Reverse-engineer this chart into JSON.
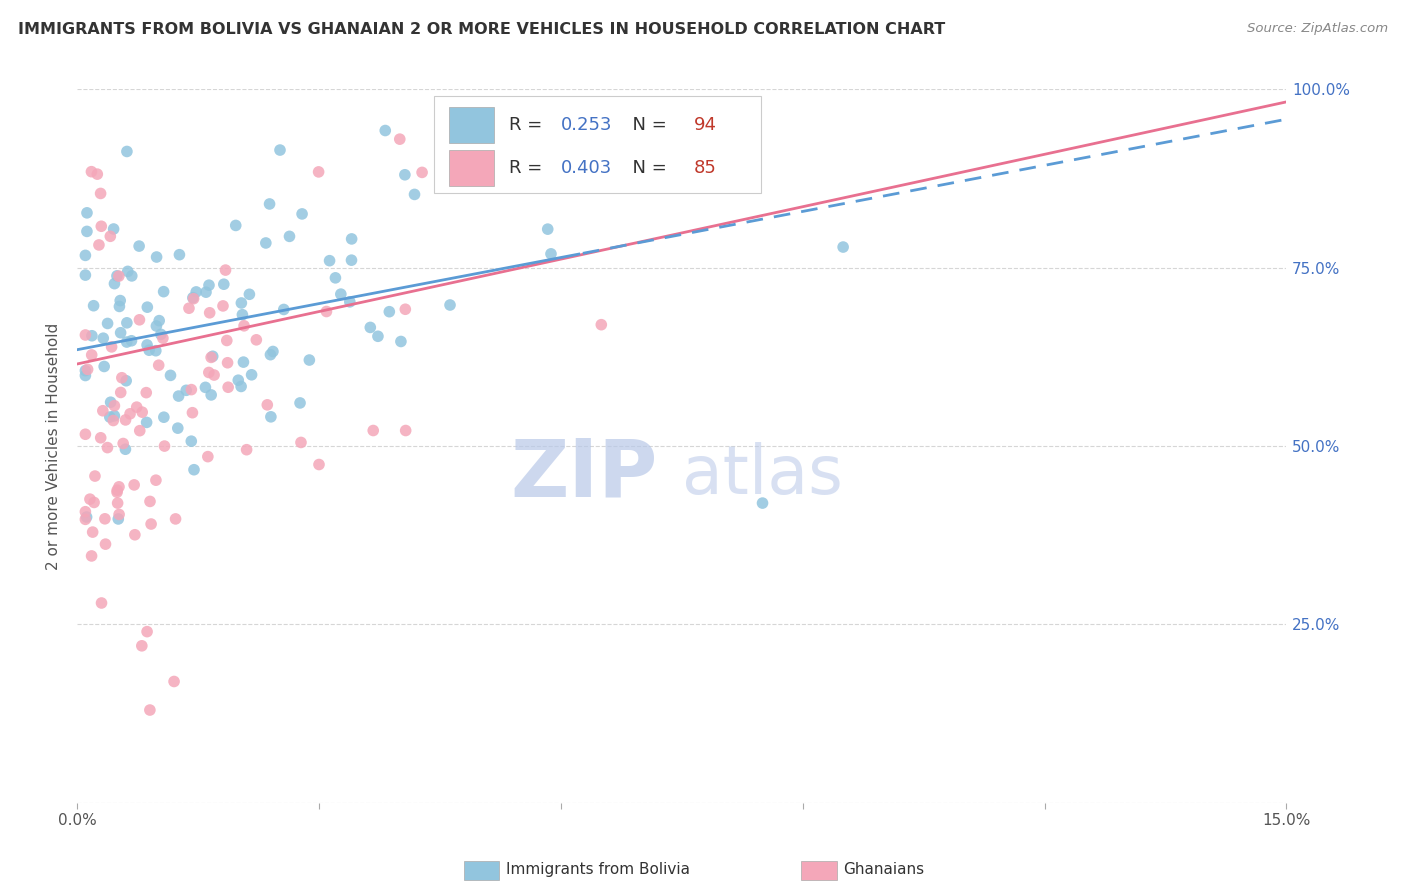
{
  "title": "IMMIGRANTS FROM BOLIVIA VS GHANAIAN 2 OR MORE VEHICLES IN HOUSEHOLD CORRELATION CHART",
  "source": "Source: ZipAtlas.com",
  "ylabel_label": "2 or more Vehicles in Household",
  "xlim": [
    0.0,
    0.15
  ],
  "ylim": [
    0.0,
    1.0
  ],
  "bolivia_color": "#92C5DE",
  "ghana_color": "#F4A7B9",
  "bolivia_line_color": "#5B9BD5",
  "ghana_line_color": "#E87090",
  "bolivia_r": 0.253,
  "bolivia_n": 94,
  "ghana_r": 0.403,
  "ghana_n": 85,
  "stat_r_color": "#4472C4",
  "stat_n_color": "#C0392B",
  "watermark_zip": "ZIP",
  "watermark_atlas": "atlas",
  "watermark_color": "#C8D8F0",
  "grid_color": "#CCCCCC",
  "legend_bottom_label1": "Immigrants from Bolivia",
  "legend_bottom_label2": "Ghanaians"
}
